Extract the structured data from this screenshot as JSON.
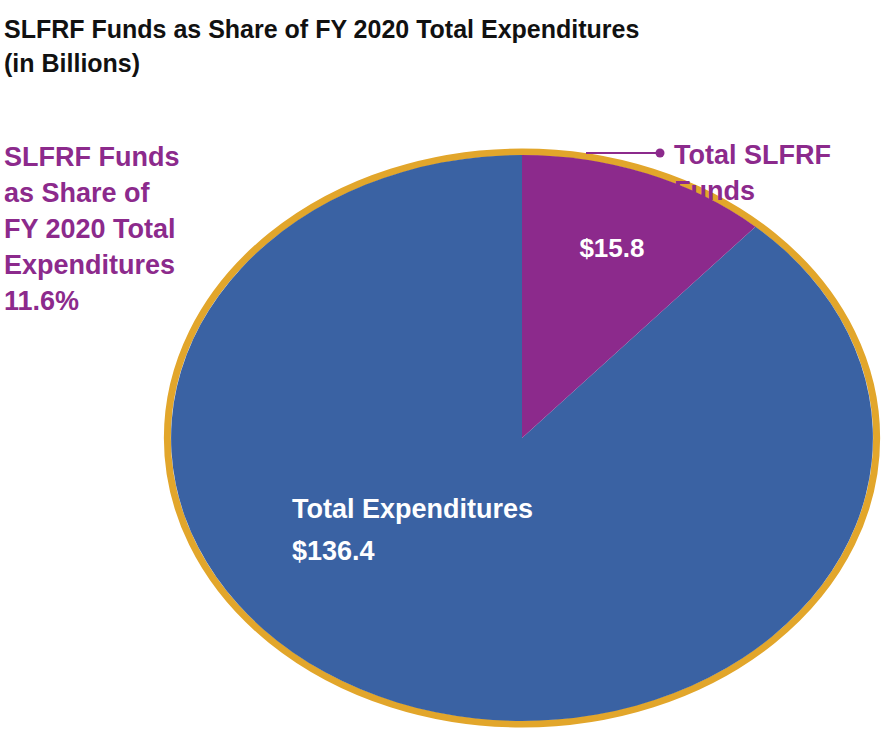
{
  "chart_data": {
    "type": "pie",
    "title": "SLFRF Funds as Share of FY 2020 Total Expenditures",
    "subtitle": "(in Billions)",
    "categories": [
      "Total SLFRF Funds"
    ],
    "values": [
      15.8
    ],
    "value_labels": [
      "$15.8"
    ],
    "colors": [
      "#8c2a8c"
    ],
    "total": 136.4,
    "total_name": "Total Expenditures",
    "total_label": "$136.4",
    "total_color": "#3a62a3",
    "annotation_lines": [
      "SLFRF Funds",
      "as Share of",
      "FY 2020 Total",
      "Expenditures"
    ],
    "share": 11.6,
    "share_label": "11.6%",
    "data_labels": true
  }
}
